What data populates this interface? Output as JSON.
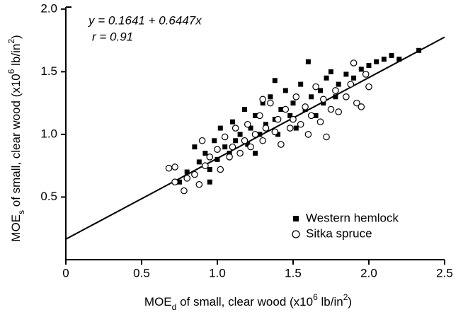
{
  "chart_data": {
    "type": "scatter",
    "annotations": [
      "y = 0.1641 + 0.6447x",
      "r = 0.91"
    ],
    "fit": {
      "intercept": 0.1641,
      "slope": 0.6447
    },
    "xlabel": [
      "MOE",
      "d",
      " of small, clear wood (x10",
      "6",
      " lb/in",
      "2",
      ")"
    ],
    "ylabel": [
      "MOE",
      "s",
      " of small, clear wood (x10",
      "6",
      " lb/in",
      "2",
      ")"
    ],
    "xlim": [
      0,
      2.5
    ],
    "ylim": [
      0,
      2.05
    ],
    "xticks": [
      0,
      0.5,
      {
        "value": 1,
        "label": "1.0"
      },
      1.5,
      {
        "value": 2,
        "label": "2.0"
      },
      2.5
    ],
    "yticks": [
      0.5,
      {
        "value": 1,
        "label": "1.0"
      },
      1.5,
      {
        "value": 2,
        "label": "2.0"
      }
    ],
    "legend": "lower right",
    "series": [
      {
        "name": "Western hemlock",
        "color": "#000000",
        "marker": "square",
        "x": [
          0.75,
          0.8,
          0.85,
          0.88,
          0.92,
          0.95,
          0.98,
          1.0,
          1.02,
          1.05,
          1.08,
          1.1,
          1.12,
          1.15,
          1.18,
          1.2,
          1.22,
          1.25,
          1.28,
          1.3,
          1.32,
          1.35,
          1.38,
          1.4,
          1.42,
          1.45,
          1.48,
          1.5,
          1.52,
          1.55,
          1.58,
          1.6,
          1.62,
          1.65,
          1.68,
          1.7,
          1.72,
          1.75,
          1.78,
          1.8,
          1.85,
          1.9,
          1.95,
          2.0,
          2.05,
          2.1,
          2.15,
          2.2,
          2.33,
          1.38,
          1.25,
          0.95
        ],
        "values": [
          0.62,
          0.7,
          0.9,
          0.78,
          0.85,
          0.72,
          0.95,
          0.8,
          1.05,
          0.9,
          0.85,
          1.1,
          0.95,
          1.0,
          1.2,
          0.92,
          1.05,
          1.15,
          1.0,
          1.25,
          1.08,
          1.3,
          1.12,
          1.0,
          1.2,
          1.35,
          1.15,
          1.25,
          1.05,
          1.4,
          1.2,
          1.58,
          1.3,
          1.15,
          1.35,
          1.25,
          1.45,
          1.5,
          1.3,
          1.4,
          1.48,
          1.45,
          1.52,
          1.55,
          1.58,
          1.6,
          1.63,
          1.6,
          1.67,
          1.43,
          0.85,
          0.62
        ]
      },
      {
        "name": "Sitka spruce",
        "color": "#000000",
        "marker": "circle",
        "x": [
          0.68,
          0.72,
          0.72,
          0.78,
          0.8,
          0.85,
          0.88,
          0.9,
          0.92,
          0.95,
          1.0,
          1.02,
          1.05,
          1.08,
          1.1,
          1.12,
          1.15,
          1.18,
          1.2,
          1.22,
          1.25,
          1.28,
          1.3,
          1.32,
          1.35,
          1.38,
          1.4,
          1.42,
          1.45,
          1.48,
          1.5,
          1.52,
          1.55,
          1.58,
          1.6,
          1.62,
          1.65,
          1.68,
          1.7,
          1.72,
          1.75,
          1.78,
          1.8,
          1.85,
          1.88,
          1.9,
          1.92,
          1.95,
          1.98,
          2.0,
          1.3
        ],
        "values": [
          0.73,
          0.74,
          0.62,
          0.55,
          0.65,
          0.68,
          0.6,
          0.95,
          0.75,
          0.82,
          0.88,
          0.72,
          0.98,
          0.82,
          0.9,
          1.05,
          0.85,
          0.95,
          1.08,
          0.9,
          1.0,
          1.15,
          0.95,
          1.05,
          1.25,
          1.02,
          1.12,
          0.92,
          1.2,
          1.05,
          1.12,
          1.3,
          1.08,
          1.22,
          1.0,
          1.15,
          1.38,
          1.1,
          1.28,
          0.98,
          1.2,
          1.35,
          1.18,
          1.3,
          1.4,
          1.57,
          1.25,
          1.22,
          1.48,
          1.38,
          1.28
        ]
      }
    ]
  }
}
